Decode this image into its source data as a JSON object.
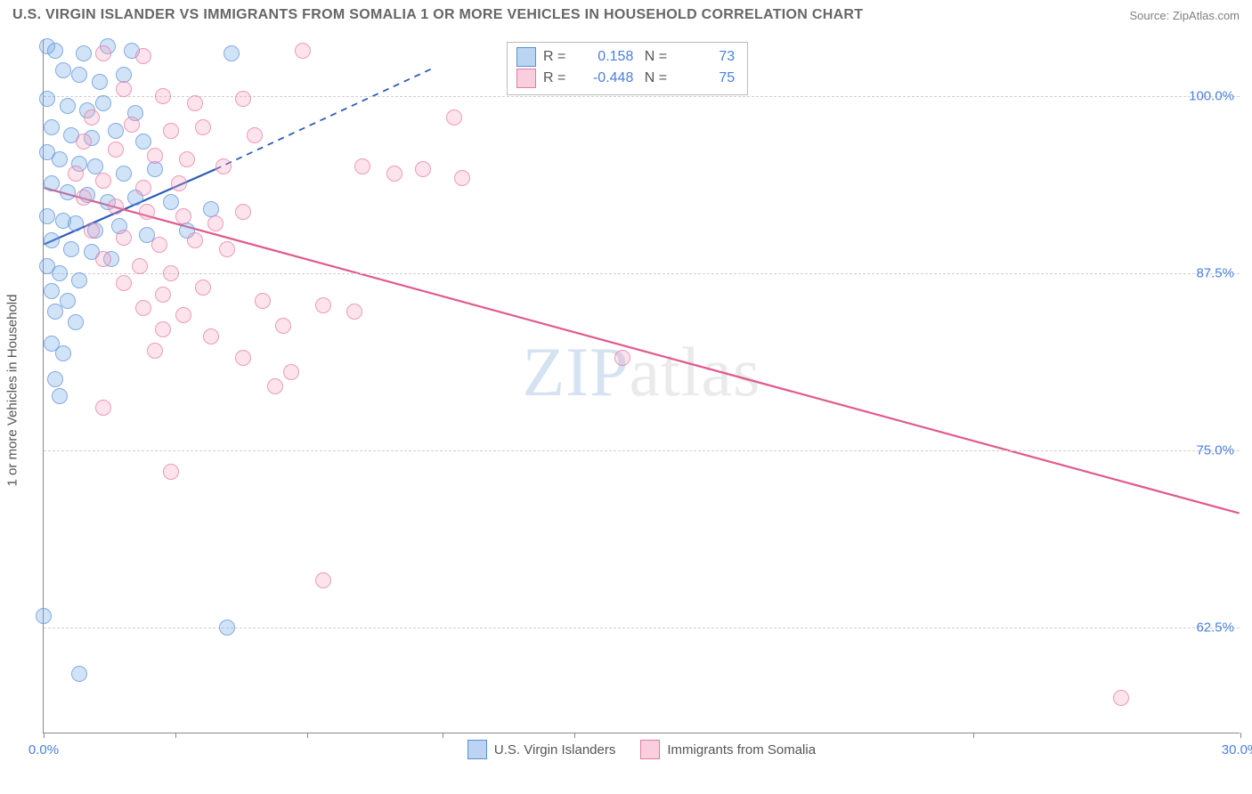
{
  "title": "U.S. VIRGIN ISLANDER VS IMMIGRANTS FROM SOMALIA 1 OR MORE VEHICLES IN HOUSEHOLD CORRELATION CHART",
  "source": "Source: ZipAtlas.com",
  "yaxis_title": "1 or more Vehicles in Household",
  "watermark_a": "ZIP",
  "watermark_b": "atlas",
  "chart": {
    "type": "scatter",
    "xlim": [
      0,
      30
    ],
    "ylim": [
      55,
      104
    ],
    "xticks": [
      0,
      3.3,
      6.6,
      10,
      13.3,
      23.3,
      30
    ],
    "xtick_labels": {
      "0": "0.0%",
      "30": "30.0%"
    },
    "yticks": [
      62.5,
      75.0,
      87.5,
      100.0
    ],
    "ytick_labels": [
      "62.5%",
      "75.0%",
      "87.5%",
      "100.0%"
    ],
    "grid_color": "#d0d0d0",
    "background": "#ffffff",
    "axis_color": "#888888",
    "label_color": "#4a7fe0"
  },
  "series": [
    {
      "name": "U.S. Virgin Islanders",
      "color_fill": "rgba(120,170,230,0.45)",
      "color_stroke": "#5a8fd6",
      "R": "0.158",
      "N": "73",
      "trend": {
        "x1": 0,
        "y1": 89.5,
        "x2_solid": 4.3,
        "y2_solid": 94.8,
        "x2_dash": 9.8,
        "y2_dash": 102.0,
        "color": "#2a5bb8",
        "width": 2.2
      },
      "points": [
        [
          0.1,
          103.5
        ],
        [
          0.3,
          103.2
        ],
        [
          1.0,
          103.0
        ],
        [
          1.6,
          103.5
        ],
        [
          2.2,
          103.2
        ],
        [
          4.7,
          103.0
        ],
        [
          0.5,
          101.8
        ],
        [
          0.9,
          101.5
        ],
        [
          1.4,
          101.0
        ],
        [
          2.0,
          101.5
        ],
        [
          0.1,
          99.8
        ],
        [
          0.6,
          99.3
        ],
        [
          1.1,
          99.0
        ],
        [
          1.5,
          99.5
        ],
        [
          2.3,
          98.8
        ],
        [
          0.2,
          97.8
        ],
        [
          0.7,
          97.2
        ],
        [
          1.2,
          97.0
        ],
        [
          1.8,
          97.5
        ],
        [
          2.5,
          96.8
        ],
        [
          0.1,
          96.0
        ],
        [
          0.4,
          95.5
        ],
        [
          0.9,
          95.2
        ],
        [
          1.3,
          95.0
        ],
        [
          2.0,
          94.5
        ],
        [
          2.8,
          94.8
        ],
        [
          0.2,
          93.8
        ],
        [
          0.6,
          93.2
        ],
        [
          1.1,
          93.0
        ],
        [
          1.6,
          92.5
        ],
        [
          2.3,
          92.8
        ],
        [
          3.2,
          92.5
        ],
        [
          0.1,
          91.5
        ],
        [
          0.5,
          91.2
        ],
        [
          0.8,
          91.0
        ],
        [
          1.3,
          90.5
        ],
        [
          1.9,
          90.8
        ],
        [
          2.6,
          90.2
        ],
        [
          3.6,
          90.5
        ],
        [
          4.2,
          92.0
        ],
        [
          0.2,
          89.8
        ],
        [
          0.7,
          89.2
        ],
        [
          1.2,
          89.0
        ],
        [
          1.7,
          88.5
        ],
        [
          0.1,
          88.0
        ],
        [
          0.4,
          87.5
        ],
        [
          0.9,
          87.0
        ],
        [
          0.2,
          86.2
        ],
        [
          0.6,
          85.5
        ],
        [
          0.3,
          84.8
        ],
        [
          0.8,
          84.0
        ],
        [
          0.2,
          82.5
        ],
        [
          0.5,
          81.8
        ],
        [
          0.3,
          80.0
        ],
        [
          0.4,
          78.8
        ],
        [
          0.0,
          63.3
        ],
        [
          0.9,
          59.2
        ],
        [
          4.6,
          62.5
        ]
      ]
    },
    {
      "name": "Immigrants from Somalia",
      "color_fill": "rgba(244,160,190,0.4)",
      "color_stroke": "#e47aa4",
      "R": "-0.448",
      "N": "75",
      "trend": {
        "x1": 0,
        "y1": 93.5,
        "x2": 30,
        "y2": 70.5,
        "color": "#e05a8c",
        "width": 2.2
      },
      "points": [
        [
          1.5,
          103.0
        ],
        [
          2.5,
          102.8
        ],
        [
          6.5,
          103.2
        ],
        [
          2.0,
          100.5
        ],
        [
          3.0,
          100.0
        ],
        [
          3.8,
          99.5
        ],
        [
          5.0,
          99.8
        ],
        [
          1.2,
          98.5
        ],
        [
          2.2,
          98.0
        ],
        [
          3.2,
          97.5
        ],
        [
          4.0,
          97.8
        ],
        [
          5.3,
          97.2
        ],
        [
          1.0,
          96.8
        ],
        [
          1.8,
          96.2
        ],
        [
          2.8,
          95.8
        ],
        [
          3.6,
          95.5
        ],
        [
          4.5,
          95.0
        ],
        [
          10.3,
          98.5
        ],
        [
          0.8,
          94.5
        ],
        [
          1.5,
          94.0
        ],
        [
          2.5,
          93.5
        ],
        [
          3.4,
          93.8
        ],
        [
          8.0,
          95.0
        ],
        [
          8.8,
          94.5
        ],
        [
          9.5,
          94.8
        ],
        [
          10.5,
          94.2
        ],
        [
          1.0,
          92.8
        ],
        [
          1.8,
          92.2
        ],
        [
          2.6,
          91.8
        ],
        [
          3.5,
          91.5
        ],
        [
          4.3,
          91.0
        ],
        [
          5.0,
          91.8
        ],
        [
          1.2,
          90.5
        ],
        [
          2.0,
          90.0
        ],
        [
          2.9,
          89.5
        ],
        [
          3.8,
          89.8
        ],
        [
          4.6,
          89.2
        ],
        [
          1.5,
          88.5
        ],
        [
          2.4,
          88.0
        ],
        [
          3.2,
          87.5
        ],
        [
          2.0,
          86.8
        ],
        [
          3.0,
          86.0
        ],
        [
          4.0,
          86.5
        ],
        [
          2.5,
          85.0
        ],
        [
          3.5,
          84.5
        ],
        [
          5.5,
          85.5
        ],
        [
          3.0,
          83.5
        ],
        [
          4.2,
          83.0
        ],
        [
          6.0,
          83.8
        ],
        [
          2.8,
          82.0
        ],
        [
          5.0,
          81.5
        ],
        [
          6.2,
          80.5
        ],
        [
          7.0,
          85.2
        ],
        [
          7.8,
          84.8
        ],
        [
          5.8,
          79.5
        ],
        [
          1.5,
          78.0
        ],
        [
          3.2,
          73.5
        ],
        [
          14.5,
          81.5
        ],
        [
          7.0,
          65.8
        ],
        [
          27.0,
          57.5
        ]
      ]
    }
  ],
  "legend_top": {
    "rows": [
      {
        "swatch": "blue",
        "R_label": "R =",
        "R": "0.158",
        "N_label": "N =",
        "N": "73"
      },
      {
        "swatch": "pink",
        "R_label": "R =",
        "R": "-0.448",
        "N_label": "N =",
        "N": "75"
      }
    ]
  },
  "legend_bottom": [
    {
      "swatch": "blue",
      "label": "U.S. Virgin Islanders"
    },
    {
      "swatch": "pink",
      "label": "Immigrants from Somalia"
    }
  ]
}
